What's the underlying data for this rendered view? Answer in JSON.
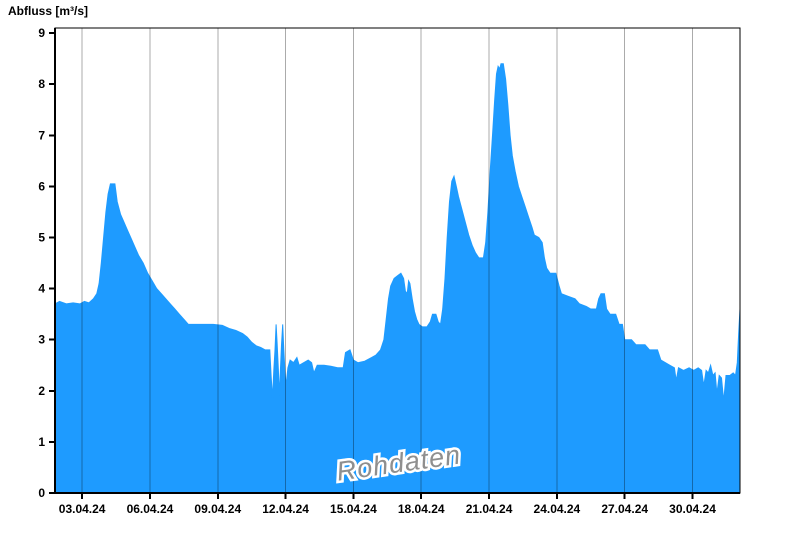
{
  "chart_data": {
    "type": "area",
    "title": "",
    "ylabel": "Abfluss [m³/s]",
    "xlabel": "",
    "watermark": "Rohdaten",
    "legend": "none",
    "grid": "vertical-only",
    "x_axis": {
      "unit": "date (day-of-April-2024, fractional)",
      "min_day": 1.8,
      "max_day": 32.1,
      "ticks": [
        {
          "day": 3,
          "label": "03.04.24"
        },
        {
          "day": 6,
          "label": "06.04.24"
        },
        {
          "day": 9,
          "label": "09.04.24"
        },
        {
          "day": 12,
          "label": "12.04.24"
        },
        {
          "day": 15,
          "label": "15.04.24"
        },
        {
          "day": 18,
          "label": "18.04.24"
        },
        {
          "day": 21,
          "label": "21.04.24"
        },
        {
          "day": 24,
          "label": "24.04.24"
        },
        {
          "day": 27,
          "label": "27.04.24"
        },
        {
          "day": 30,
          "label": "30.04.24"
        }
      ]
    },
    "y_axis": {
      "min": 0,
      "max": 9.1,
      "ticks": [
        0,
        1,
        2,
        3,
        4,
        5,
        6,
        7,
        8,
        9
      ]
    },
    "colors": {
      "fill": "#1e9bff",
      "grid": "rgba(0,0,0,0.33)",
      "axis": "#000000",
      "watermark": "#8f8f8f"
    },
    "series": [
      {
        "name": "Abfluss",
        "points": [
          [
            1.8,
            3.7
          ],
          [
            2.0,
            3.75
          ],
          [
            2.3,
            3.7
          ],
          [
            2.6,
            3.72
          ],
          [
            2.9,
            3.7
          ],
          [
            3.1,
            3.75
          ],
          [
            3.3,
            3.72
          ],
          [
            3.5,
            3.8
          ],
          [
            3.65,
            3.9
          ],
          [
            3.75,
            4.1
          ],
          [
            3.85,
            4.5
          ],
          [
            3.95,
            5.0
          ],
          [
            4.05,
            5.5
          ],
          [
            4.15,
            5.85
          ],
          [
            4.25,
            6.05
          ],
          [
            4.45,
            6.05
          ],
          [
            4.55,
            5.7
          ],
          [
            4.7,
            5.45
          ],
          [
            4.85,
            5.3
          ],
          [
            5.0,
            5.15
          ],
          [
            5.15,
            5.0
          ],
          [
            5.3,
            4.85
          ],
          [
            5.5,
            4.65
          ],
          [
            5.7,
            4.5
          ],
          [
            5.9,
            4.3
          ],
          [
            6.1,
            4.15
          ],
          [
            6.3,
            4.0
          ],
          [
            6.5,
            3.9
          ],
          [
            6.7,
            3.8
          ],
          [
            6.9,
            3.7
          ],
          [
            7.1,
            3.6
          ],
          [
            7.3,
            3.5
          ],
          [
            7.5,
            3.4
          ],
          [
            7.7,
            3.3
          ],
          [
            8.2,
            3.3
          ],
          [
            8.8,
            3.3
          ],
          [
            9.2,
            3.28
          ],
          [
            9.5,
            3.22
          ],
          [
            9.8,
            3.18
          ],
          [
            10.1,
            3.12
          ],
          [
            10.3,
            3.05
          ],
          [
            10.5,
            2.95
          ],
          [
            10.7,
            2.88
          ],
          [
            10.9,
            2.85
          ],
          [
            11.1,
            2.8
          ],
          [
            11.3,
            2.8
          ],
          [
            11.36,
            2.3
          ],
          [
            11.42,
            1.85
          ],
          [
            11.48,
            2.4
          ],
          [
            11.53,
            2.8
          ],
          [
            11.58,
            3.3
          ],
          [
            11.63,
            2.9
          ],
          [
            11.68,
            2.4
          ],
          [
            11.72,
            1.9
          ],
          [
            11.77,
            2.4
          ],
          [
            11.82,
            2.9
          ],
          [
            11.87,
            3.3
          ],
          [
            11.92,
            2.8
          ],
          [
            11.97,
            2.4
          ],
          [
            12.02,
            2.1
          ],
          [
            12.1,
            2.45
          ],
          [
            12.2,
            2.6
          ],
          [
            12.35,
            2.55
          ],
          [
            12.5,
            2.65
          ],
          [
            12.6,
            2.5
          ],
          [
            12.8,
            2.55
          ],
          [
            13.0,
            2.6
          ],
          [
            13.15,
            2.55
          ],
          [
            13.25,
            2.35
          ],
          [
            13.4,
            2.5
          ],
          [
            13.7,
            2.5
          ],
          [
            14.0,
            2.48
          ],
          [
            14.3,
            2.45
          ],
          [
            14.55,
            2.45
          ],
          [
            14.65,
            2.75
          ],
          [
            14.85,
            2.8
          ],
          [
            15.0,
            2.6
          ],
          [
            15.2,
            2.55
          ],
          [
            15.5,
            2.58
          ],
          [
            15.8,
            2.65
          ],
          [
            16.0,
            2.7
          ],
          [
            16.2,
            2.8
          ],
          [
            16.35,
            3.0
          ],
          [
            16.45,
            3.4
          ],
          [
            16.55,
            3.8
          ],
          [
            16.65,
            4.05
          ],
          [
            16.8,
            4.2
          ],
          [
            16.95,
            4.25
          ],
          [
            17.1,
            4.3
          ],
          [
            17.22,
            4.2
          ],
          [
            17.3,
            3.95
          ],
          [
            17.38,
            3.9
          ],
          [
            17.44,
            4.15
          ],
          [
            17.5,
            4.1
          ],
          [
            17.6,
            3.8
          ],
          [
            17.7,
            3.55
          ],
          [
            17.8,
            3.4
          ],
          [
            17.9,
            3.3
          ],
          [
            18.05,
            3.25
          ],
          [
            18.25,
            3.25
          ],
          [
            18.4,
            3.35
          ],
          [
            18.5,
            3.5
          ],
          [
            18.65,
            3.5
          ],
          [
            18.75,
            3.35
          ],
          [
            18.85,
            3.3
          ],
          [
            18.95,
            3.6
          ],
          [
            19.05,
            4.2
          ],
          [
            19.15,
            5.0
          ],
          [
            19.25,
            5.7
          ],
          [
            19.35,
            6.1
          ],
          [
            19.45,
            6.2
          ],
          [
            19.55,
            6.0
          ],
          [
            19.65,
            5.8
          ],
          [
            19.8,
            5.55
          ],
          [
            19.95,
            5.3
          ],
          [
            20.1,
            5.05
          ],
          [
            20.25,
            4.85
          ],
          [
            20.4,
            4.7
          ],
          [
            20.55,
            4.6
          ],
          [
            20.75,
            4.6
          ],
          [
            20.85,
            4.9
          ],
          [
            20.95,
            5.5
          ],
          [
            21.05,
            6.3
          ],
          [
            21.15,
            7.0
          ],
          [
            21.25,
            7.7
          ],
          [
            21.33,
            8.2
          ],
          [
            21.4,
            8.35
          ],
          [
            21.47,
            8.3
          ],
          [
            21.53,
            8.4
          ],
          [
            21.63,
            8.4
          ],
          [
            21.73,
            8.1
          ],
          [
            21.83,
            7.6
          ],
          [
            21.93,
            7.0
          ],
          [
            22.03,
            6.6
          ],
          [
            22.15,
            6.3
          ],
          [
            22.3,
            6.0
          ],
          [
            22.45,
            5.8
          ],
          [
            22.6,
            5.6
          ],
          [
            22.75,
            5.4
          ],
          [
            22.9,
            5.2
          ],
          [
            23.0,
            5.05
          ],
          [
            23.2,
            5.0
          ],
          [
            23.35,
            4.9
          ],
          [
            23.45,
            4.6
          ],
          [
            23.55,
            4.4
          ],
          [
            23.7,
            4.3
          ],
          [
            23.95,
            4.3
          ],
          [
            24.1,
            4.05
          ],
          [
            24.2,
            3.9
          ],
          [
            24.5,
            3.85
          ],
          [
            24.8,
            3.8
          ],
          [
            25.0,
            3.7
          ],
          [
            25.3,
            3.65
          ],
          [
            25.5,
            3.6
          ],
          [
            25.75,
            3.6
          ],
          [
            25.85,
            3.8
          ],
          [
            25.95,
            3.9
          ],
          [
            26.1,
            3.9
          ],
          [
            26.2,
            3.6
          ],
          [
            26.35,
            3.5
          ],
          [
            26.6,
            3.5
          ],
          [
            26.75,
            3.3
          ],
          [
            26.9,
            3.3
          ],
          [
            27.0,
            3.0
          ],
          [
            27.3,
            3.0
          ],
          [
            27.5,
            2.9
          ],
          [
            27.9,
            2.9
          ],
          [
            28.1,
            2.8
          ],
          [
            28.45,
            2.8
          ],
          [
            28.6,
            2.6
          ],
          [
            28.8,
            2.55
          ],
          [
            29.0,
            2.5
          ],
          [
            29.2,
            2.45
          ],
          [
            29.28,
            2.2
          ],
          [
            29.38,
            2.45
          ],
          [
            29.6,
            2.4
          ],
          [
            29.85,
            2.45
          ],
          [
            30.05,
            2.4
          ],
          [
            30.25,
            2.45
          ],
          [
            30.4,
            2.4
          ],
          [
            30.5,
            2.1
          ],
          [
            30.6,
            2.4
          ],
          [
            30.7,
            2.35
          ],
          [
            30.8,
            2.5
          ],
          [
            30.9,
            2.3
          ],
          [
            31.0,
            2.35
          ],
          [
            31.08,
            1.95
          ],
          [
            31.18,
            2.3
          ],
          [
            31.28,
            2.25
          ],
          [
            31.38,
            1.8
          ],
          [
            31.48,
            2.3
          ],
          [
            31.65,
            2.3
          ],
          [
            31.8,
            2.35
          ],
          [
            31.9,
            2.3
          ],
          [
            31.98,
            2.55
          ],
          [
            32.04,
            3.1
          ],
          [
            32.1,
            3.6
          ]
        ]
      }
    ]
  }
}
